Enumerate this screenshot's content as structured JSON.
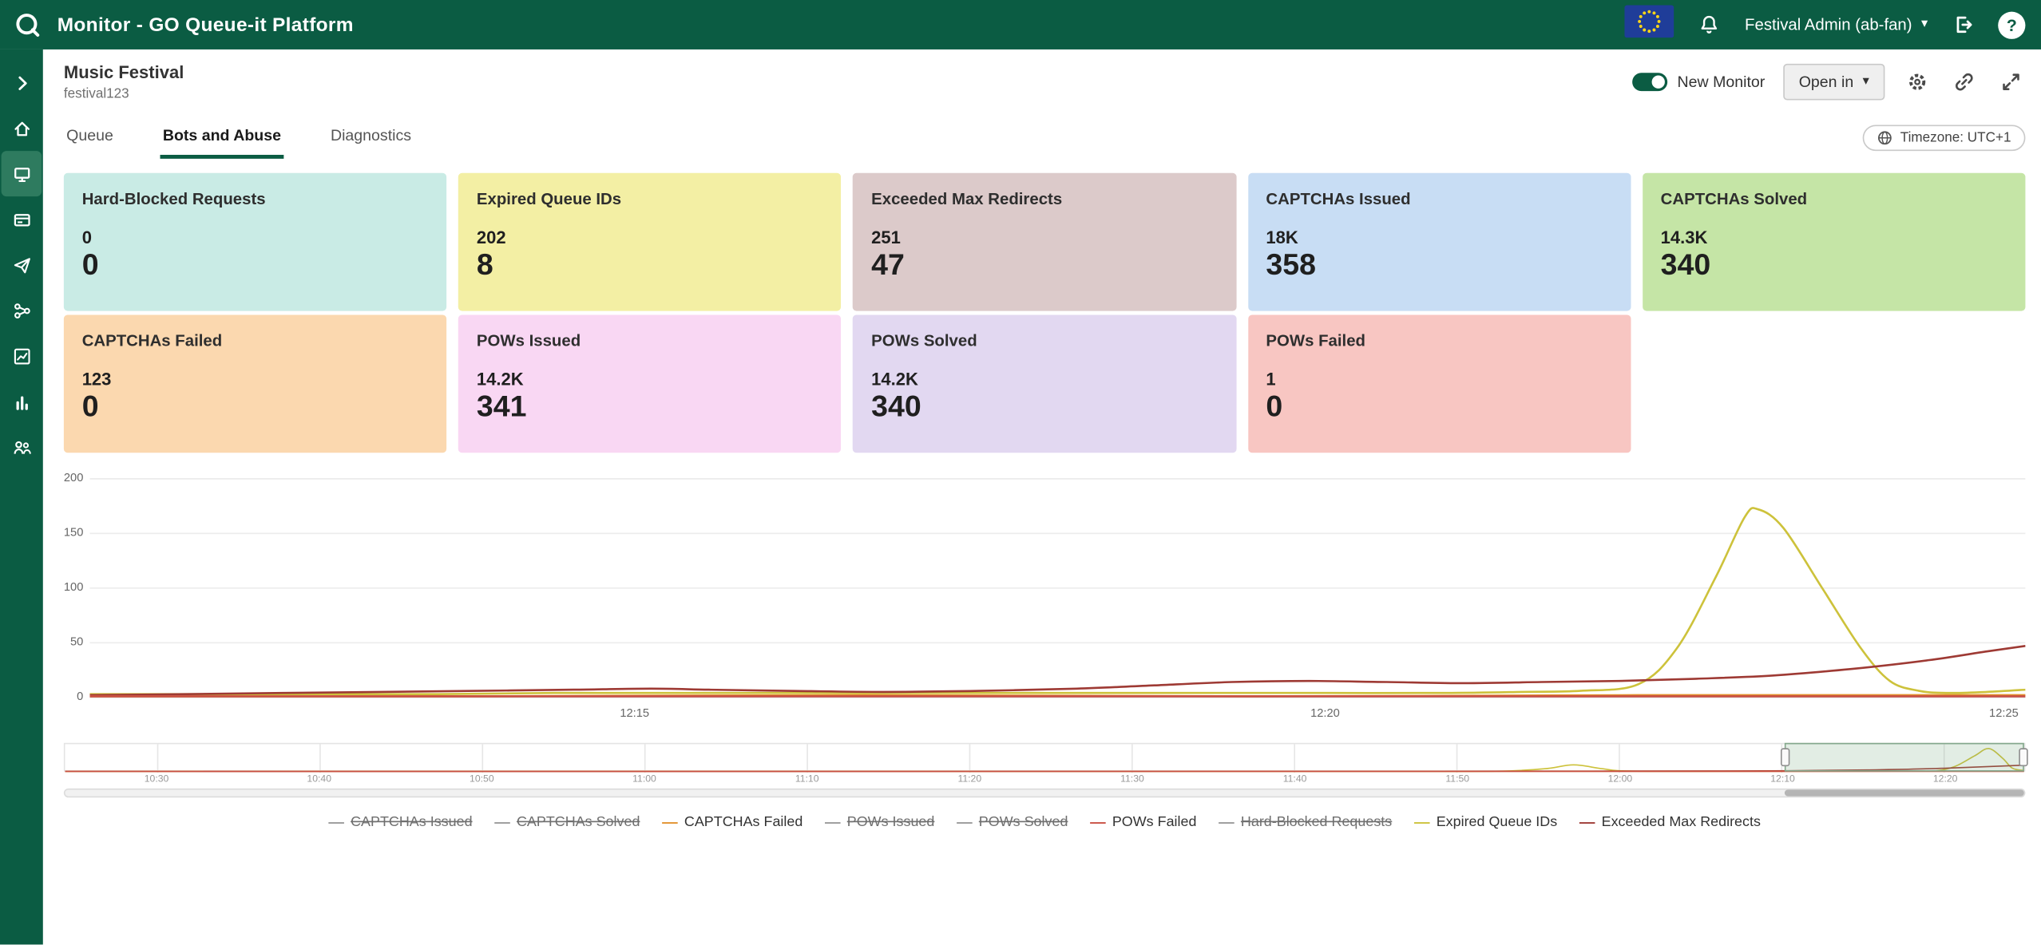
{
  "topbar": {
    "title": "Monitor - GO Queue-it Platform",
    "user_menu_label": "Festival Admin (ab-fan)"
  },
  "monitor_header": {
    "title": "Music Festival",
    "subtitle": "festival123",
    "new_monitor_toggle_label": "New Monitor",
    "new_monitor_toggle_on": true,
    "open_in_button_label": "Open in",
    "timezone_label": "Timezone: UTC+1"
  },
  "tabs": [
    {
      "label": "Queue",
      "active": false
    },
    {
      "label": "Bots and Abuse",
      "active": true
    },
    {
      "label": "Diagnostics",
      "active": false
    }
  ],
  "stat_cards": [
    {
      "title": "Hard-Blocked Requests",
      "value_small": "0",
      "value_large": "0",
      "color": "#c9ebe5"
    },
    {
      "title": "Expired Queue IDs",
      "value_small": "202",
      "value_large": "8",
      "color": "#f3efa4"
    },
    {
      "title": "Exceeded Max Redirects",
      "value_small": "251",
      "value_large": "47",
      "color": "#dccaca"
    },
    {
      "title": "CAPTCHAs Issued",
      "value_small": "18K",
      "value_large": "358",
      "color": "#c8ddf4"
    },
    {
      "title": "CAPTCHAs Solved",
      "value_small": "14.3K",
      "value_large": "340",
      "color": "#c5e5a6"
    },
    {
      "title": "CAPTCHAs Failed",
      "value_small": "123",
      "value_large": "0",
      "color": "#fbd8af"
    },
    {
      "title": "POWs Issued",
      "value_small": "14.2K",
      "value_large": "341",
      "color": "#f9d7f3"
    },
    {
      "title": "POWs Solved",
      "value_small": "14.2K",
      "value_large": "340",
      "color": "#e2d8f1"
    },
    {
      "title": "POWs Failed",
      "value_small": "1",
      "value_large": "0",
      "color": "#f8c6c2"
    }
  ],
  "chart_data": {
    "type": "line",
    "ylim": [
      0,
      200
    ],
    "yticks": [
      "200",
      "150",
      "100",
      "50",
      "0"
    ],
    "xticks": [
      "12:15",
      "12:20",
      "12:25"
    ],
    "grid": true,
    "legend_position": "bottom",
    "series": [
      {
        "name": "Expired Queue IDs",
        "color": "#cdc23b",
        "points": [
          [
            0,
            3
          ],
          [
            0.06,
            3
          ],
          [
            0.12,
            3
          ],
          [
            0.18,
            3
          ],
          [
            0.24,
            4
          ],
          [
            0.29,
            4
          ],
          [
            0.34,
            4
          ],
          [
            0.4,
            4
          ],
          [
            0.46,
            4
          ],
          [
            0.52,
            4
          ],
          [
            0.58,
            4
          ],
          [
            0.64,
            4
          ],
          [
            0.7,
            4
          ],
          [
            0.74,
            5
          ],
          [
            0.77,
            6
          ],
          [
            0.8,
            12
          ],
          [
            0.82,
            45
          ],
          [
            0.84,
            110
          ],
          [
            0.855,
            165
          ],
          [
            0.862,
            172
          ],
          [
            0.875,
            155
          ],
          [
            0.895,
            100
          ],
          [
            0.915,
            45
          ],
          [
            0.93,
            15
          ],
          [
            0.945,
            6
          ],
          [
            0.96,
            4
          ],
          [
            0.98,
            5
          ],
          [
            1,
            7
          ]
        ]
      },
      {
        "name": "Exceeded Max Redirects",
        "color": "#9e3a34",
        "points": [
          [
            0,
            2
          ],
          [
            0.05,
            3
          ],
          [
            0.1,
            4
          ],
          [
            0.15,
            5
          ],
          [
            0.2,
            6
          ],
          [
            0.25,
            7
          ],
          [
            0.29,
            8
          ],
          [
            0.32,
            7
          ],
          [
            0.36,
            6
          ],
          [
            0.41,
            5
          ],
          [
            0.46,
            6
          ],
          [
            0.51,
            8
          ],
          [
            0.55,
            11
          ],
          [
            0.59,
            14
          ],
          [
            0.63,
            15
          ],
          [
            0.67,
            14
          ],
          [
            0.71,
            13
          ],
          [
            0.75,
            14
          ],
          [
            0.79,
            15
          ],
          [
            0.83,
            17
          ],
          [
            0.87,
            20
          ],
          [
            0.91,
            26
          ],
          [
            0.95,
            34
          ],
          [
            0.98,
            42
          ],
          [
            1,
            47
          ]
        ]
      },
      {
        "name": "CAPTCHAs Failed",
        "color": "#e2922e",
        "points": [
          [
            0,
            1
          ],
          [
            0.2,
            1
          ],
          [
            0.4,
            2
          ],
          [
            0.6,
            1
          ],
          [
            0.8,
            2
          ],
          [
            1,
            2
          ]
        ]
      },
      {
        "name": "POWs Failed",
        "color": "#c94f43",
        "points": [
          [
            0,
            1
          ],
          [
            0.25,
            1
          ],
          [
            0.5,
            1
          ],
          [
            0.75,
            1
          ],
          [
            1,
            1
          ]
        ]
      }
    ]
  },
  "navigator": {
    "xticks": [
      "10:30",
      "10:40",
      "10:50",
      "11:00",
      "11:10",
      "11:20",
      "11:30",
      "11:40",
      "11:50",
      "12:00",
      "12:10",
      "12:20"
    ],
    "selection_start": 0.878,
    "selection_end": 1.0,
    "ymax": 185,
    "series": [
      {
        "name": "Expired Queue IDs",
        "color": "#cdc23b",
        "points": [
          [
            0,
            1
          ],
          [
            0.1,
            1
          ],
          [
            0.2,
            1
          ],
          [
            0.3,
            1
          ],
          [
            0.4,
            1
          ],
          [
            0.5,
            1
          ],
          [
            0.6,
            1
          ],
          [
            0.65,
            1
          ],
          [
            0.7,
            1
          ],
          [
            0.73,
            2
          ],
          [
            0.755,
            20
          ],
          [
            0.77,
            50
          ],
          [
            0.785,
            20
          ],
          [
            0.8,
            3
          ],
          [
            0.85,
            2
          ],
          [
            0.9,
            2
          ],
          [
            0.94,
            3
          ],
          [
            0.955,
            5
          ],
          [
            0.965,
            40
          ],
          [
            0.975,
            120
          ],
          [
            0.982,
            172
          ],
          [
            0.989,
            100
          ],
          [
            0.994,
            25
          ],
          [
            1,
            8
          ]
        ]
      },
      {
        "name": "Exceeded Max Redirects",
        "color": "#9e3a34",
        "points": [
          [
            0,
            1
          ],
          [
            0.1,
            1
          ],
          [
            0.2,
            1
          ],
          [
            0.3,
            1
          ],
          [
            0.4,
            1
          ],
          [
            0.5,
            1
          ],
          [
            0.6,
            2
          ],
          [
            0.7,
            2
          ],
          [
            0.78,
            3
          ],
          [
            0.84,
            4
          ],
          [
            0.88,
            6
          ],
          [
            0.92,
            12
          ],
          [
            0.95,
            20
          ],
          [
            0.97,
            30
          ],
          [
            1,
            48
          ]
        ]
      },
      {
        "name": "CAPTCHAs Failed",
        "color": "#e2922e",
        "points": [
          [
            0,
            1
          ],
          [
            0.5,
            1
          ],
          [
            1,
            2
          ]
        ]
      },
      {
        "name": "POWs Failed",
        "color": "#c94f43",
        "points": [
          [
            0,
            0.5
          ],
          [
            0.5,
            0.5
          ],
          [
            1,
            1
          ]
        ]
      }
    ]
  },
  "legend": [
    {
      "label": "CAPTCHAs Issued",
      "color": "#9a9a9a",
      "disabled": true
    },
    {
      "label": "CAPTCHAs Solved",
      "color": "#9a9a9a",
      "disabled": true
    },
    {
      "label": "CAPTCHAs Failed",
      "color": "#e2922e",
      "disabled": false
    },
    {
      "label": "POWs Issued",
      "color": "#9a9a9a",
      "disabled": true
    },
    {
      "label": "POWs Solved",
      "color": "#9a9a9a",
      "disabled": true
    },
    {
      "label": "POWs Failed",
      "color": "#c94f43",
      "disabled": false
    },
    {
      "label": "Hard-Blocked Requests",
      "color": "#9a9a9a",
      "disabled": true
    },
    {
      "label": "Expired Queue IDs",
      "color": "#cdc23b",
      "disabled": false
    },
    {
      "label": "Exceeded Max Redirects",
      "color": "#9e3a34",
      "disabled": false
    }
  ],
  "icons": {
    "caret": "▾",
    "help": "?",
    "dash": "—"
  }
}
